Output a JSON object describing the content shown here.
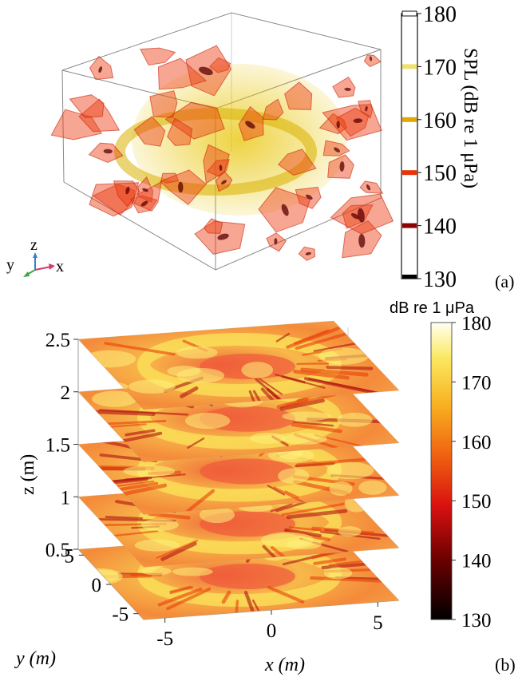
{
  "figure": {
    "panel_a_label": "(a)",
    "panel_b_label": "(b)"
  },
  "chart_data": [
    {
      "type": "isosurface",
      "panel": "(a)",
      "colorbar": {
        "label": "SPL (dB re 1 μPa)",
        "ticks": [
          130,
          140,
          150,
          160,
          170,
          180
        ],
        "range": [
          130,
          180
        ],
        "isolevels": [
          {
            "value": 130,
            "color": "#000000"
          },
          {
            "value": 140,
            "color": "#8b0000"
          },
          {
            "value": 150,
            "color": "#e8330c"
          },
          {
            "value": 160,
            "color": "#e0a800"
          },
          {
            "value": 170,
            "color": "#f0e070"
          },
          {
            "value": 180,
            "color": "#ffffff"
          }
        ]
      },
      "orientation_axes": [
        "z",
        "y",
        "x"
      ]
    },
    {
      "type": "heatmap",
      "panel": "(b)",
      "plot_style": "stacked horizontal slices",
      "colorbar": {
        "title": "dB re 1 μPa",
        "ticks": [
          130,
          140,
          150,
          160,
          170,
          180
        ],
        "range": [
          130,
          180
        ],
        "colormap": "hot"
      },
      "xlabel": "x (m)",
      "ylabel": "y (m)",
      "zlabel": "z (m)",
      "x_ticks": [
        -5,
        0,
        5
      ],
      "y_ticks": [
        -5,
        0,
        5
      ],
      "z_ticks": [
        0.5,
        1,
        1.5,
        2,
        2.5
      ],
      "slice_z_values": [
        0.5,
        1,
        1.5,
        2,
        2.5
      ],
      "xlim": [
        -6,
        6
      ],
      "ylim": [
        -6,
        6
      ],
      "zlim": [
        0.4,
        2.5
      ]
    }
  ],
  "colors": {
    "hot_dark": "#1a0000",
    "hot_red": "#e31a0b",
    "hot_orange": "#f58a1f",
    "hot_yellow": "#f9e23a",
    "hot_white": "#ffffee"
  }
}
